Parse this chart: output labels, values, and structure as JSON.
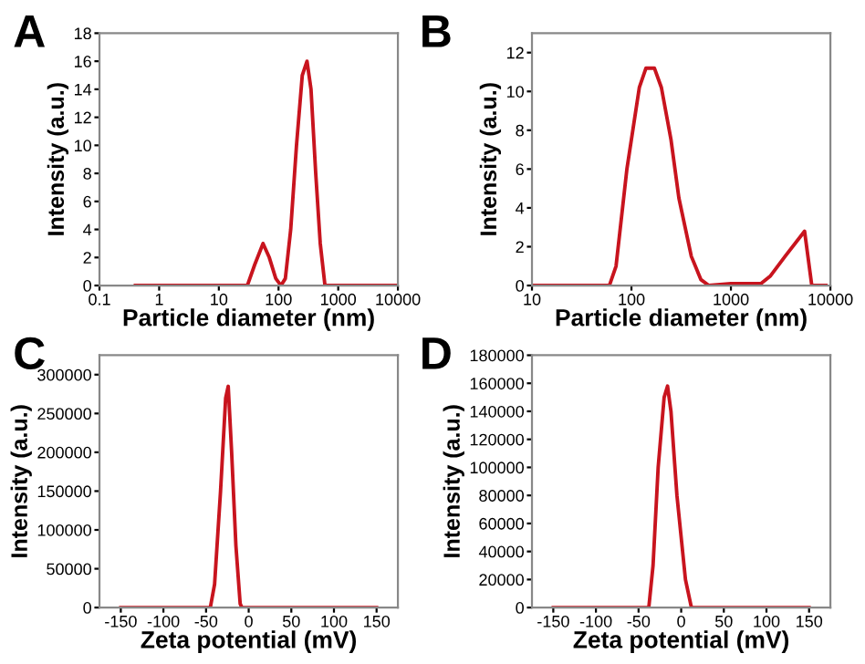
{
  "chart_data": [
    {
      "type": "line",
      "title": "A",
      "xlabel": "Particle diameter (nm)",
      "ylabel": "Intensity (a.u.)",
      "log": "x",
      "xlim": [
        0.1,
        10000
      ],
      "xticks": [
        0.1,
        1,
        10,
        100,
        1000,
        10000
      ],
      "ylim": [
        0,
        18
      ],
      "yticks": [
        0,
        2,
        4,
        6,
        8,
        10,
        12,
        14,
        16,
        18
      ],
      "grid": false,
      "marker": "none",
      "line_style": "solid",
      "series": [
        {
          "color": "#c8141e",
          "x": [
            0.4,
            30,
            40,
            55,
            70,
            90,
            110,
            130,
            160,
            200,
            250,
            300,
            350,
            420,
            500,
            600,
            10000
          ],
          "values": [
            0,
            0,
            1.5,
            3,
            2,
            0.5,
            0,
            0.5,
            4,
            10,
            15,
            16,
            14,
            8,
            3,
            0,
            0
          ]
        }
      ]
    },
    {
      "type": "line",
      "title": "B",
      "xlabel": "Particle diameter (nm)",
      "ylabel": "Intensity (a.u.)",
      "log": "x",
      "xlim": [
        10,
        10000
      ],
      "xticks": [
        10,
        100,
        1000,
        10000
      ],
      "ylim": [
        0,
        13
      ],
      "yticks": [
        0,
        2,
        4,
        6,
        8,
        10,
        12
      ],
      "grid": false,
      "marker": "none",
      "line_style": "solid",
      "series": [
        {
          "color": "#c8141e",
          "x": [
            10,
            60,
            70,
            90,
            120,
            140,
            170,
            200,
            250,
            300,
            400,
            500,
            600,
            1000,
            2000,
            2500,
            3500,
            5500,
            6500,
            9000
          ],
          "values": [
            0,
            0,
            1,
            6,
            10.2,
            11.2,
            11.2,
            10.2,
            7.5,
            4.5,
            1.5,
            0.3,
            0,
            0.1,
            0.1,
            0.5,
            1.5,
            2.8,
            0,
            0
          ]
        }
      ]
    },
    {
      "type": "line",
      "title": "C",
      "xlabel": "Zeta potential (mV)",
      "ylabel": "Intensity (a.u.)",
      "xlim": [
        -175,
        175
      ],
      "xticks": [
        -150,
        -100,
        -50,
        0,
        50,
        100,
        150
      ],
      "ylim": [
        0,
        325000
      ],
      "yticks": [
        0,
        50000,
        100000,
        150000,
        200000,
        250000,
        300000
      ],
      "grid": false,
      "marker": "none",
      "line_style": "solid",
      "series": [
        {
          "color": "#c8141e",
          "x": [
            -150,
            -45,
            -40,
            -33,
            -27,
            -24,
            -20,
            -15,
            -10,
            -8,
            150
          ],
          "values": [
            0,
            0,
            30000,
            150000,
            270000,
            285000,
            200000,
            80000,
            5000,
            0,
            0
          ]
        }
      ]
    },
    {
      "type": "line",
      "title": "D",
      "xlabel": "Zeta potential (mV)",
      "ylabel": "Intensity (a.u.)",
      "xlim": [
        -175,
        175
      ],
      "xticks": [
        -150,
        -100,
        -50,
        0,
        50,
        100,
        150
      ],
      "ylim": [
        0,
        180000
      ],
      "yticks": [
        0,
        20000,
        40000,
        60000,
        80000,
        100000,
        120000,
        140000,
        160000,
        180000
      ],
      "grid": false,
      "marker": "none",
      "line_style": "solid",
      "series": [
        {
          "color": "#c8141e",
          "x": [
            -150,
            -38,
            -33,
            -27,
            -20,
            -16,
            -12,
            -5,
            5,
            12,
            150
          ],
          "values": [
            0,
            0,
            30000,
            100000,
            150000,
            158000,
            140000,
            80000,
            20000,
            0,
            0
          ]
        }
      ]
    }
  ]
}
